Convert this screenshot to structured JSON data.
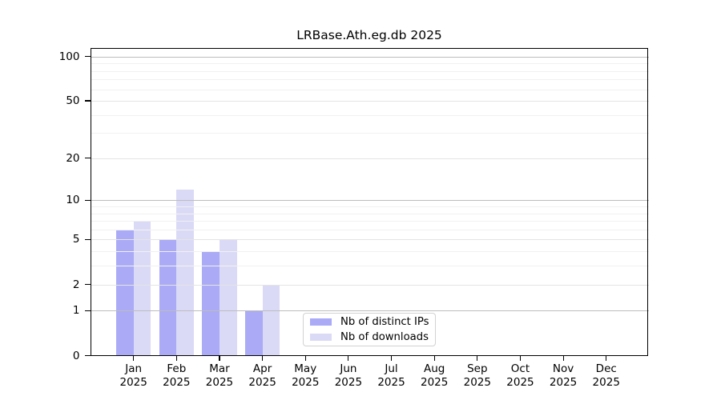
{
  "title": "LRBase.Ath.eg.db 2025",
  "chart_data": {
    "type": "bar",
    "title": "LRBase.Ath.eg.db 2025",
    "categories": [
      "Jan",
      "Feb",
      "Mar",
      "Apr",
      "May",
      "Jun",
      "Jul",
      "Aug",
      "Sep",
      "Oct",
      "Nov",
      "Dec"
    ],
    "year": "2025",
    "series": [
      {
        "name": "Nb of distinct IPs",
        "color": "#aaaaf6",
        "values": [
          6,
          5,
          4,
          1,
          0,
          0,
          0,
          0,
          0,
          0,
          0,
          0
        ]
      },
      {
        "name": "Nb of downloads",
        "color": "#dadaf6",
        "values": [
          7,
          12,
          5,
          2,
          0,
          0,
          0,
          0,
          0,
          0,
          0,
          0
        ]
      }
    ],
    "xlabel": "",
    "ylabel": "",
    "y_scale": "log10(1+x)",
    "y_ticks": [
      0,
      1,
      2,
      5,
      10,
      20,
      50,
      100
    ],
    "y_max": 115,
    "grid": true,
    "gridlines": {
      "decade": [
        1,
        10,
        100
      ],
      "major": [
        2,
        5,
        20,
        50
      ],
      "minor": [
        3,
        4,
        6,
        7,
        8,
        9,
        30,
        40,
        60,
        70,
        80,
        90
      ]
    },
    "gridline_colors": {
      "decade": "#bdbdbd",
      "major": "#e4e4e4",
      "minor": "#f1f1f1"
    },
    "legend_position": "lower center inside plot"
  },
  "legend": {
    "items": [
      {
        "label": "Nb of distinct IPs"
      },
      {
        "label": "Nb of downloads"
      }
    ]
  }
}
